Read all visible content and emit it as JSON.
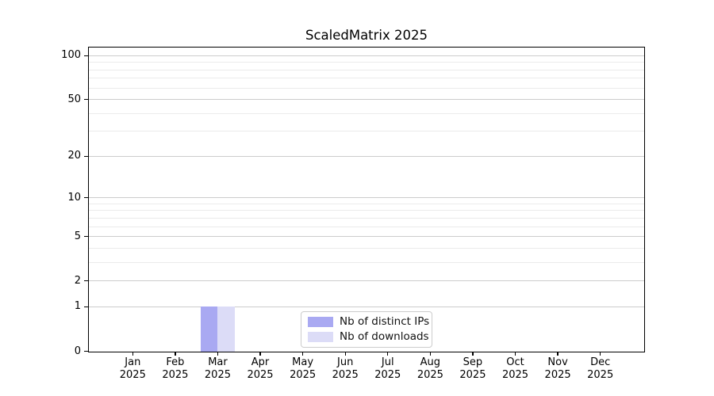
{
  "window": {
    "background_color": "#ffffff"
  },
  "chart_data": {
    "type": "bar",
    "title": "ScaledMatrix 2025",
    "xlabel": "",
    "ylabel": "",
    "categories": [
      "Jan 2025",
      "Feb 2025",
      "Mar 2025",
      "Apr 2025",
      "May 2025",
      "Jun 2025",
      "Jul 2025",
      "Aug 2025",
      "Sep 2025",
      "Oct 2025",
      "Nov 2025",
      "Dec 2025"
    ],
    "series": [
      {
        "name": "Nb of distinct IPs",
        "color": "#a9a9f2",
        "values": [
          0,
          0,
          1,
          0,
          0,
          0,
          0,
          0,
          0,
          0,
          0,
          0
        ]
      },
      {
        "name": "Nb of downloads",
        "color": "#dcdcf7",
        "values": [
          0,
          0,
          1,
          0,
          0,
          0,
          0,
          0,
          0,
          0,
          0,
          0
        ]
      }
    ],
    "y_axis": {
      "scale": "log1p",
      "ylim": [
        0,
        114
      ],
      "ticks": [
        0,
        1,
        2,
        5,
        10,
        20,
        50,
        100
      ],
      "minor_ticks": [
        3,
        4,
        6,
        7,
        8,
        9,
        30,
        40,
        60,
        70,
        80,
        90
      ]
    },
    "grid": {
      "visible": true,
      "major_color": "#cccccc",
      "minor_color": "#ebebeb"
    },
    "legend": {
      "position": "lower center",
      "border_color": "#cccccc",
      "entries": [
        "Nb of distinct IPs",
        "Nb of downloads"
      ]
    },
    "axis_color": "#000000",
    "text_color": "#000000"
  }
}
